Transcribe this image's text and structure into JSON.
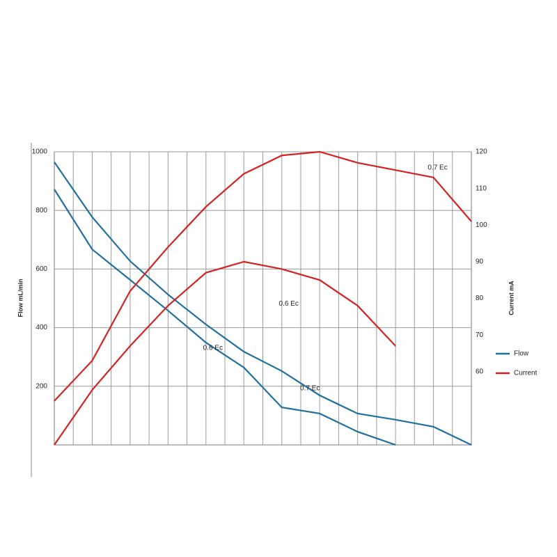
{
  "chart_data": {
    "type": "line",
    "categories": [
      null,
      null,
      null,
      null,
      null,
      null,
      null,
      null,
      null,
      null,
      null,
      null
    ],
    "y_label": "Flow mL/min",
    "y2_label": "Current mA",
    "ylim": [
      0,
      1000
    ],
    "yticks": [
      200,
      400,
      600,
      800,
      1000
    ],
    "y2lim": [
      40,
      120
    ],
    "y2ticks": [
      60,
      70,
      80,
      90,
      100,
      110,
      120
    ],
    "grid": true,
    "legend": "right",
    "series": [
      {
        "name": "Flow",
        "label": "0.7 Ec",
        "color": "#1f6f9f",
        "axis": "y",
        "values": [
          965,
          777,
          627,
          513,
          411,
          318,
          252,
          169,
          107,
          86,
          62,
          0
        ]
      },
      {
        "name": "Flow",
        "label": "0.6 Ec",
        "color": "#1f6f9f",
        "axis": "y",
        "values": [
          872,
          667,
          563,
          458,
          349,
          264,
          128,
          107,
          45,
          0,
          null,
          null
        ]
      },
      {
        "name": "Current",
        "label": "0.7 Ec",
        "color": "#d42222",
        "axis": "y2",
        "values": [
          52,
          63,
          82,
          94,
          105,
          114,
          119,
          120,
          117,
          115,
          113,
          101
        ]
      },
      {
        "name": "Current",
        "label": "0.6 Ec",
        "color": "#d42222",
        "axis": "y2",
        "values": [
          40,
          55,
          67,
          78,
          87,
          90,
          88,
          85,
          78,
          67,
          null,
          null
        ]
      }
    ]
  }
}
